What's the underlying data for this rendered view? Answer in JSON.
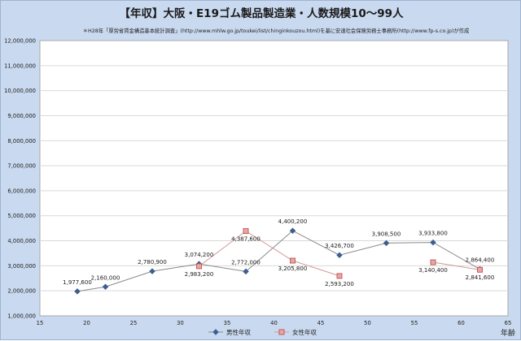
{
  "chart_data": {
    "type": "line",
    "title": "【年収】大阪・E19ゴム製品製造業・人数規模10〜99人",
    "subtitle": "＊H28年「厚労省賃金構造基本統計調査」(http://www.mhlw.go.jp/toukei/list/chinginkouzou.html)を基に安達社会保険労務士事務所(http://www.fp-s.co.jp)が作成",
    "xlabel": "年齢",
    "ylabel": "",
    "xlim": [
      15,
      65
    ],
    "ylim": [
      1000000,
      12000000
    ],
    "x_ticks": [
      15,
      20,
      25,
      30,
      35,
      40,
      45,
      50,
      55,
      60,
      65
    ],
    "y_ticks": [
      1000000,
      2000000,
      3000000,
      4000000,
      5000000,
      6000000,
      7000000,
      8000000,
      9000000,
      10000000,
      11000000,
      12000000
    ],
    "y_tick_labels": [
      "1,000,000",
      "2,000,000",
      "3,000,000",
      "4,000,000",
      "5,000,000",
      "6,000,000",
      "7,000,000",
      "8,000,000",
      "9,000,000",
      "10,000,000",
      "11,000,000",
      "12,000,000"
    ],
    "x_tick_labels": [
      "15",
      "20",
      "25",
      "30",
      "35",
      "40",
      "45",
      "50",
      "55",
      "60",
      "65"
    ],
    "grid": true,
    "legend_position": "bottom",
    "series": [
      {
        "name": "男性年収",
        "color": "#3d5f8f",
        "marker": "diamond",
        "x": [
          19,
          22,
          27,
          32,
          37,
          42,
          47,
          52,
          57,
          62
        ],
        "y": [
          1977600,
          2160000,
          2780900,
          3074200,
          2772000,
          4400200,
          3426700,
          3908500,
          3933800,
          2864400
        ],
        "labels": [
          "1,977,600",
          "2,160,000",
          "2,780,900",
          "3,074,200",
          "2,772,000",
          "4,400,200",
          "3,426,700",
          "3,908,500",
          "3,933,800",
          "2,864,400"
        ]
      },
      {
        "name": "女性年収",
        "color": "#c0504d",
        "marker": "square",
        "segments": [
          [
            0,
            3
          ],
          [
            4,
            5
          ]
        ],
        "x": [
          32,
          37,
          42,
          47,
          57,
          62
        ],
        "y": [
          2983200,
          4387600,
          3205800,
          2593200,
          3140400,
          2841600
        ],
        "labels": [
          "2,983,200",
          "4,387,600",
          "3,205,800",
          "2,593,200",
          "3,140,400",
          "2,841,600"
        ]
      }
    ]
  }
}
